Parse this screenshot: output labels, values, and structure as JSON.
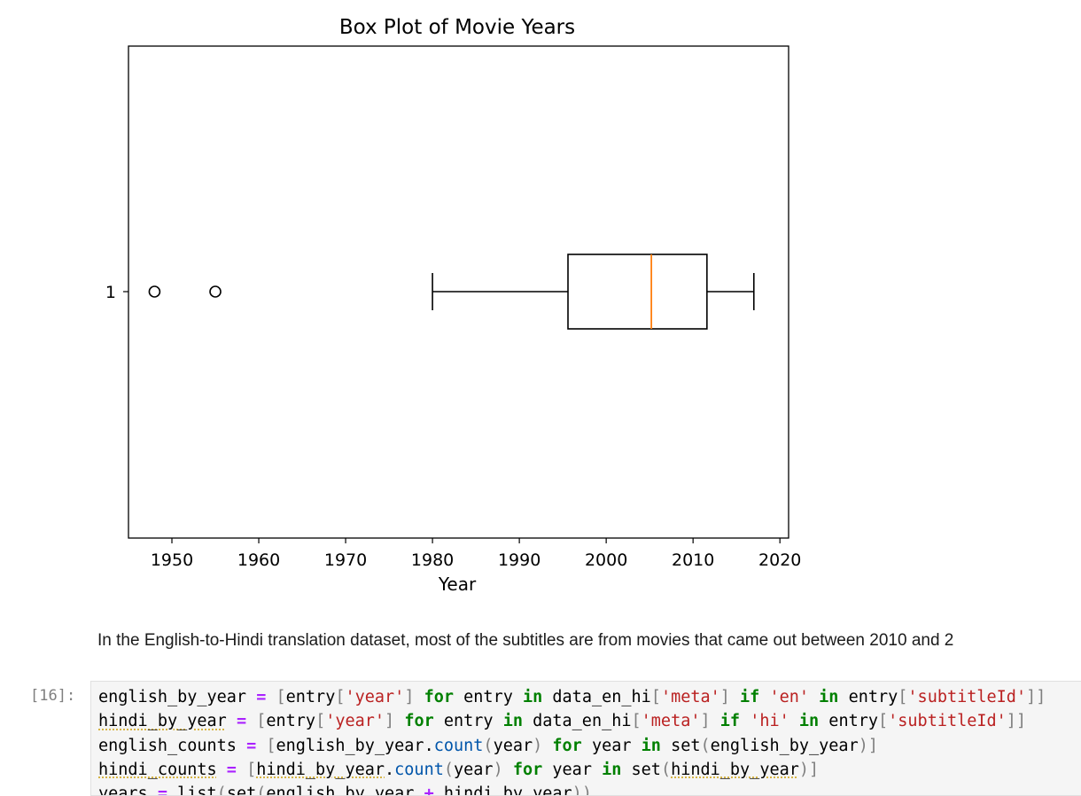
{
  "chart_data": {
    "type": "boxplot",
    "orientation": "horizontal",
    "title": "Box Plot of Movie Years",
    "xlabel": "Year",
    "ylabel": "",
    "xlim": [
      1945,
      2021
    ],
    "xticks": [
      1950,
      1960,
      1970,
      1980,
      1990,
      2000,
      2010,
      2020
    ],
    "yticks": [
      "1"
    ],
    "grid": false,
    "box": {
      "category": "1",
      "whisker_low": 1980,
      "q1": 1995.6,
      "median": 2005.2,
      "q3": 2011.6,
      "whisker_high": 2017,
      "outliers": [
        1948,
        1955
      ]
    },
    "colors": {
      "box": "#000000",
      "median": "#ff7f0e"
    }
  },
  "markdown": {
    "text": "In the English-to-Hindi translation dataset, most of the subtitles are from movies that came out between 2010 and 2"
  },
  "code_cell": {
    "prompt": "[16]:",
    "lines": [
      "english_by_year = [entry['year'] for entry in data_en_hi['meta'] if 'en' in entry['subtitleId']]",
      "hindi_by_year = [entry['year'] for entry in data_en_hi['meta'] if 'hi' in entry['subtitleId']]",
      "english_counts = [english_by_year.count(year) for year in set(english_by_year)]",
      "hindi_counts = [hindi_by_year.count(year) for year in set(hindi_by_year)]",
      "years = list(set(english_by_year + hindi_by_year))"
    ]
  }
}
